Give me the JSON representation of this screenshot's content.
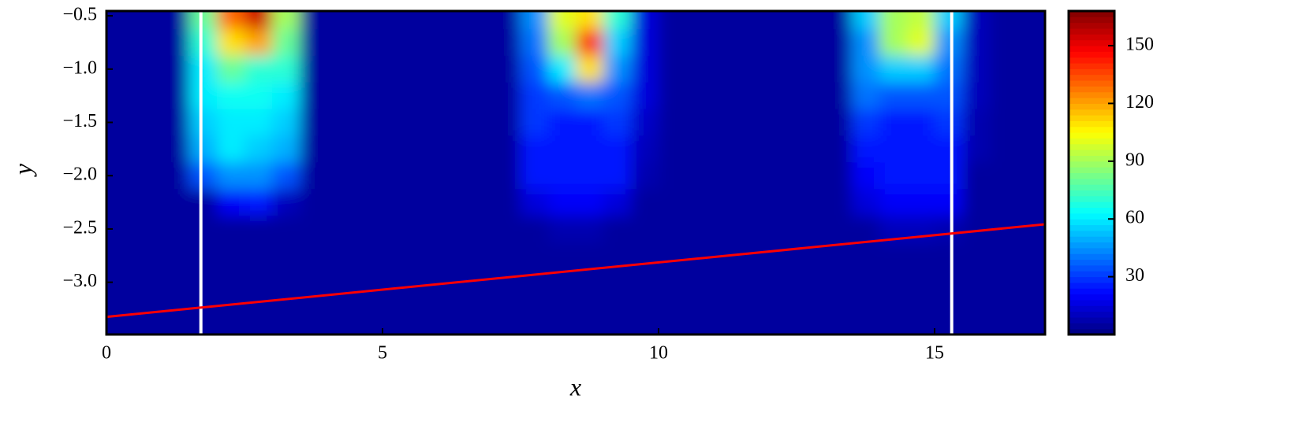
{
  "chart_data": {
    "type": "heatmap",
    "xlabel": "x",
    "ylabel": "y",
    "xlim": [
      0,
      17
    ],
    "ylim": [
      -3.49,
      -0.455
    ],
    "xticks": [
      0,
      5,
      10,
      15
    ],
    "yticks": [
      {
        "value": -0.5,
        "label": "−0.5"
      },
      {
        "value": -1.0,
        "label": "−1.0"
      },
      {
        "value": -1.5,
        "label": "−1.5"
      },
      {
        "value": -2.0,
        "label": "−2.0"
      },
      {
        "value": -2.5,
        "label": "−2.5"
      },
      {
        "value": -3.0,
        "label": "−3.0"
      }
    ],
    "x": [
      0.25,
      0.75,
      1.25,
      1.75,
      2.25,
      2.75,
      3.25,
      3.75,
      4.25,
      4.75,
      5.25,
      5.75,
      6.25,
      6.75,
      7.25,
      7.75,
      8.25,
      8.75,
      9.25,
      9.75,
      10.25,
      10.75,
      11.25,
      11.75,
      12.25,
      12.75,
      13.25,
      13.75,
      14.25,
      14.75,
      15.25,
      15.75,
      16.25,
      16.75
    ],
    "y": [
      -0.5,
      -0.75,
      -1.0,
      -1.25,
      -1.5,
      -1.75,
      -2.0,
      -2.25,
      -2.5,
      -2.75,
      -3.0,
      -3.25
    ],
    "z": [
      [
        5,
        5,
        5,
        80,
        130,
        155,
        90,
        5,
        5,
        5,
        5,
        5,
        5,
        5,
        5,
        45,
        100,
        110,
        70,
        15,
        5,
        5,
        5,
        5,
        5,
        5,
        5,
        55,
        90,
        95,
        55,
        10,
        5,
        5
      ],
      [
        5,
        5,
        5,
        70,
        110,
        120,
        80,
        5,
        5,
        5,
        5,
        5,
        5,
        5,
        5,
        40,
        90,
        140,
        55,
        15,
        5,
        5,
        5,
        5,
        5,
        5,
        5,
        45,
        90,
        100,
        45,
        10,
        5,
        5
      ],
      [
        5,
        5,
        5,
        60,
        80,
        70,
        70,
        5,
        5,
        5,
        5,
        5,
        5,
        5,
        5,
        35,
        60,
        110,
        45,
        15,
        5,
        5,
        5,
        5,
        5,
        5,
        5,
        45,
        55,
        55,
        40,
        10,
        5,
        5
      ],
      [
        5,
        5,
        5,
        60,
        65,
        65,
        60,
        5,
        5,
        5,
        5,
        5,
        5,
        5,
        5,
        30,
        35,
        40,
        35,
        15,
        5,
        5,
        5,
        5,
        5,
        5,
        5,
        40,
        35,
        35,
        35,
        10,
        5,
        5
      ],
      [
        5,
        5,
        5,
        55,
        60,
        60,
        55,
        5,
        5,
        5,
        5,
        5,
        5,
        5,
        5,
        30,
        25,
        25,
        30,
        12,
        5,
        5,
        5,
        5,
        5,
        5,
        5,
        30,
        25,
        25,
        30,
        8,
        5,
        5
      ],
      [
        5,
        5,
        5,
        50,
        60,
        55,
        50,
        5,
        5,
        5,
        5,
        5,
        5,
        5,
        5,
        25,
        25,
        25,
        25,
        10,
        5,
        5,
        5,
        5,
        5,
        5,
        5,
        25,
        25,
        25,
        25,
        8,
        5,
        5
      ],
      [
        5,
        5,
        5,
        35,
        45,
        45,
        35,
        5,
        5,
        5,
        5,
        5,
        5,
        5,
        5,
        25,
        25,
        25,
        25,
        8,
        5,
        5,
        5,
        5,
        5,
        5,
        5,
        20,
        25,
        25,
        25,
        5,
        5,
        5
      ],
      [
        5,
        5,
        5,
        5,
        20,
        25,
        10,
        5,
        5,
        5,
        5,
        5,
        5,
        5,
        5,
        15,
        20,
        20,
        15,
        5,
        5,
        5,
        5,
        5,
        5,
        5,
        5,
        15,
        20,
        20,
        20,
        5,
        5,
        5
      ],
      [
        5,
        5,
        5,
        5,
        5,
        5,
        5,
        5,
        5,
        5,
        5,
        5,
        5,
        5,
        5,
        5,
        8,
        8,
        5,
        5,
        5,
        5,
        5,
        5,
        5,
        5,
        5,
        5,
        10,
        10,
        8,
        5,
        5,
        5
      ],
      [
        5,
        5,
        5,
        5,
        5,
        5,
        5,
        5,
        5,
        5,
        5,
        5,
        5,
        5,
        5,
        5,
        5,
        5,
        5,
        5,
        5,
        5,
        5,
        5,
        5,
        5,
        5,
        5,
        5,
        5,
        5,
        5,
        5,
        5
      ],
      [
        5,
        5,
        5,
        5,
        5,
        5,
        5,
        5,
        5,
        5,
        5,
        5,
        5,
        5,
        5,
        5,
        5,
        5,
        5,
        5,
        5,
        5,
        5,
        5,
        5,
        5,
        5,
        5,
        5,
        5,
        5,
        5,
        5,
        5
      ],
      [
        5,
        5,
        5,
        5,
        5,
        5,
        5,
        5,
        5,
        5,
        5,
        5,
        5,
        5,
        5,
        5,
        5,
        5,
        5,
        5,
        5,
        5,
        5,
        5,
        5,
        5,
        5,
        5,
        5,
        5,
        5,
        5,
        5,
        5
      ]
    ],
    "colormap": "jet",
    "clim": [
      0,
      168
    ],
    "cticks": [
      30,
      60,
      90,
      120,
      150
    ],
    "vlines": {
      "x": [
        1.71,
        15.31
      ],
      "color": "#ffffff"
    },
    "line": {
      "x": [
        0,
        17
      ],
      "y": [
        -3.325,
        -2.456
      ],
      "color": "#ff0000"
    }
  }
}
